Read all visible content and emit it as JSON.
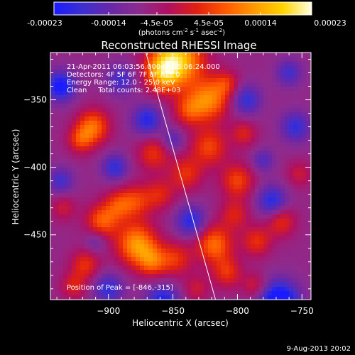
{
  "colorbar": {
    "stops": [
      "#1b1bff",
      "#3d2fd0",
      "#6a27a8",
      "#8e2b8e",
      "#b01060",
      "#e12010",
      "#ff5a00",
      "#ff9a00",
      "#ffd400",
      "#ffffe6"
    ],
    "tick_labels": [
      "-0.00023",
      "-0.00014",
      "-4.5e-05",
      "4.5e-05",
      "0.00014",
      "0.00023"
    ],
    "unit_label_main": "(photons cm",
    "unit_sup1": "-2",
    "unit_mid": " s",
    "unit_sup2": "-1",
    "unit_mid2": " asec",
    "unit_sup3": "-2",
    "unit_end": ")"
  },
  "plot": {
    "title": "Reconstructed RHESSI Image",
    "info_lines": [
      "21-Apr-2011 06:03:56.000 to 06:06:24.000",
      "Detectors: 4F 5F 6F 7F 8F  ATT 0",
      "Energy Range: 12.0 - 25.0 keV",
      "Clean     Total counts: 2.48E+03"
    ],
    "peak_label": "Position of Peak = [-846,-315]",
    "footer_date": "9-Aug-2013 20:02"
  },
  "chart_data": {
    "type": "heatmap",
    "title": "Reconstructed RHESSI Image",
    "xlabel": "Heliocentric X (arcsec)",
    "ylabel": "Heliocentric Y (arcsec)",
    "xlim": [
      -945,
      -743
    ],
    "ylim": [
      -498,
      -315
    ],
    "x_ticks": [
      -900,
      -850,
      -800,
      -750
    ],
    "y_ticks": [
      -450,
      -400,
      -350
    ],
    "colorbar_range": [
      -0.00023,
      0.00023
    ],
    "limb_line": [
      [
        -871,
        -315
      ],
      [
        -817,
        -498
      ]
    ],
    "peak_position": [
      -846,
      -315
    ],
    "blobs": [
      {
        "x": -846,
        "y": -320,
        "s": 14,
        "a": 1.3
      },
      {
        "x": -858,
        "y": -330,
        "s": 10,
        "a": 0.9
      },
      {
        "x": -822,
        "y": -350,
        "s": 11,
        "a": 1.0
      },
      {
        "x": -838,
        "y": -358,
        "s": 8,
        "a": 0.6
      },
      {
        "x": -808,
        "y": -338,
        "s": 7,
        "a": 0.5
      },
      {
        "x": -912,
        "y": -370,
        "s": 9,
        "a": 0.9
      },
      {
        "x": -922,
        "y": -380,
        "s": 7,
        "a": 0.6
      },
      {
        "x": -865,
        "y": -390,
        "s": 9,
        "a": 0.6
      },
      {
        "x": -822,
        "y": -385,
        "s": 10,
        "a": 0.7
      },
      {
        "x": -840,
        "y": -405,
        "s": 9,
        "a": 0.6
      },
      {
        "x": -795,
        "y": -375,
        "s": 7,
        "a": 0.5
      },
      {
        "x": -800,
        "y": -410,
        "s": 9,
        "a": 0.7
      },
      {
        "x": -802,
        "y": -435,
        "s": 8,
        "a": 0.5
      },
      {
        "x": -878,
        "y": -425,
        "s": 9,
        "a": 0.6
      },
      {
        "x": -860,
        "y": -420,
        "s": 8,
        "a": 0.5
      },
      {
        "x": -905,
        "y": -440,
        "s": 9,
        "a": 0.8
      },
      {
        "x": -892,
        "y": -428,
        "s": 8,
        "a": 0.6
      },
      {
        "x": -878,
        "y": -457,
        "s": 11,
        "a": 1.1
      },
      {
        "x": -866,
        "y": -470,
        "s": 8,
        "a": 0.7
      },
      {
        "x": -848,
        "y": -468,
        "s": 9,
        "a": 0.6
      },
      {
        "x": -918,
        "y": -472,
        "s": 8,
        "a": 0.6
      },
      {
        "x": -927,
        "y": -488,
        "s": 7,
        "a": 0.5
      },
      {
        "x": -818,
        "y": -457,
        "s": 10,
        "a": 0.9
      },
      {
        "x": -808,
        "y": -478,
        "s": 8,
        "a": 0.6
      },
      {
        "x": -785,
        "y": -455,
        "s": 8,
        "a": 0.6
      },
      {
        "x": -766,
        "y": -440,
        "s": 8,
        "a": 0.6
      },
      {
        "x": -786,
        "y": -488,
        "s": 7,
        "a": 0.5
      },
      {
        "x": -832,
        "y": -490,
        "s": 7,
        "a": 0.4
      },
      {
        "x": -935,
        "y": -430,
        "s": 7,
        "a": 0.4
      },
      {
        "x": -752,
        "y": -405,
        "s": 7,
        "a": 0.4
      },
      {
        "x": -895,
        "y": -400,
        "s": 7,
        "a": -0.7
      },
      {
        "x": -870,
        "y": -365,
        "s": 8,
        "a": -0.8
      },
      {
        "x": -937,
        "y": -340,
        "s": 8,
        "a": -1.0
      },
      {
        "x": -858,
        "y": -500,
        "s": 9,
        "a": -0.9
      },
      {
        "x": -768,
        "y": -500,
        "s": 11,
        "a": -1.3
      },
      {
        "x": -773,
        "y": -425,
        "s": 8,
        "a": -0.8
      },
      {
        "x": -836,
        "y": -440,
        "s": 8,
        "a": -0.8
      },
      {
        "x": -793,
        "y": -350,
        "s": 8,
        "a": -0.7
      },
      {
        "x": -755,
        "y": -370,
        "s": 8,
        "a": -0.7
      },
      {
        "x": -900,
        "y": -490,
        "s": 8,
        "a": -0.7
      },
      {
        "x": -890,
        "y": -335,
        "s": 8,
        "a": -0.6
      },
      {
        "x": -760,
        "y": -330,
        "s": 7,
        "a": -0.6
      },
      {
        "x": -937,
        "y": -410,
        "s": 7,
        "a": -0.6
      },
      {
        "x": -780,
        "y": -395,
        "s": 6,
        "a": -0.5
      },
      {
        "x": -850,
        "y": -380,
        "s": 6,
        "a": -0.5
      },
      {
        "x": -910,
        "y": -455,
        "s": 6,
        "a": -0.4
      }
    ]
  }
}
